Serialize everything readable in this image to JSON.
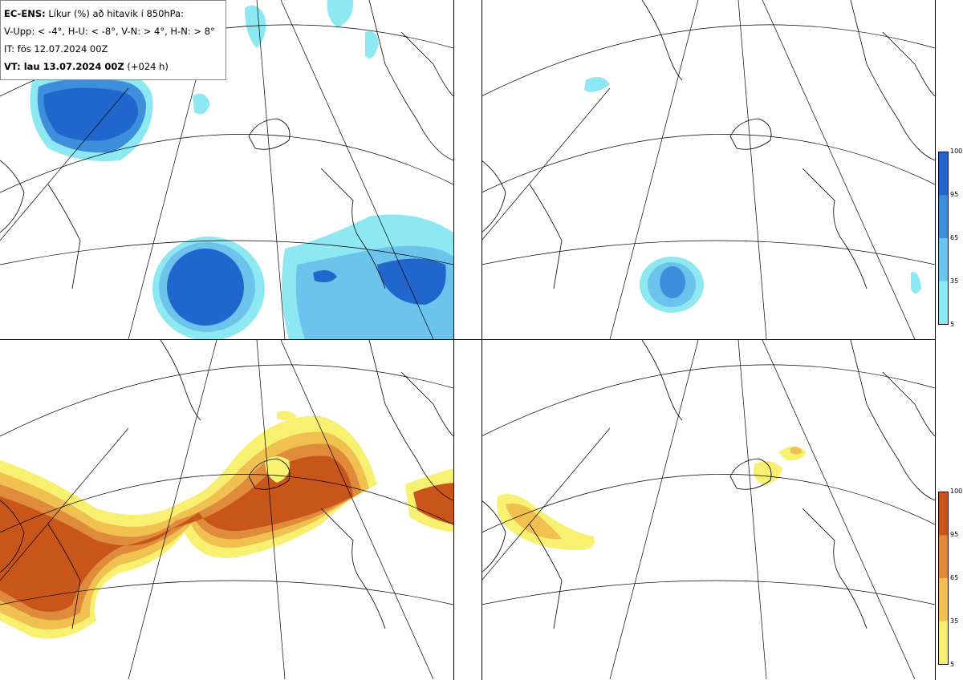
{
  "header": {
    "model": "EC-ENS:",
    "description": "Líkur (%) að hitavik í 850hPa:",
    "thresholds": "V-Upp: < -4°, H-U: < -8°, V-N: > 4°, H-N: > 8°",
    "init_time": "IT: fös 12.07.2024 00Z",
    "valid_label": "VT: lau 13.07.2024 00Z",
    "lead_time": "(+024 h)"
  },
  "panels": [
    {
      "id": "V-Upp",
      "palette": "blue"
    },
    {
      "id": "H-U",
      "palette": "blue"
    },
    {
      "id": "V-N",
      "palette": "orange"
    },
    {
      "id": "H-N",
      "palette": "orange"
    }
  ],
  "colorbar": {
    "ticks": [
      "100",
      "95",
      "65",
      "35",
      "5"
    ],
    "blue_colors": [
      "#2166cc",
      "#3d8fdb",
      "#6cc4ec",
      "#8ee8f2"
    ],
    "orange_colors": [
      "#c8551a",
      "#e08a3c",
      "#f0c050",
      "#f8f070"
    ]
  }
}
